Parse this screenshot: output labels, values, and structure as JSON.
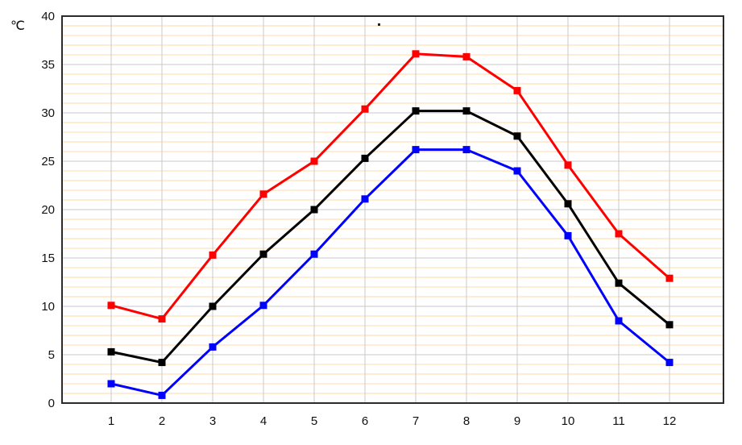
{
  "chart_data": {
    "type": "line",
    "title": "",
    "xlabel": "",
    "ylabel": "℃",
    "ylim": [
      0,
      40
    ],
    "xlim_categories": [
      "1",
      "12"
    ],
    "y_tick_step_major": 5,
    "y_tick_step_minor": 1,
    "y_tick_labels": [
      "40",
      "35",
      "30",
      "25",
      "20",
      "15",
      "10",
      "5",
      "0"
    ],
    "x_categories": [
      "1",
      "2",
      "3",
      "4",
      "5",
      "6",
      "7",
      "8",
      "9",
      "10",
      "11",
      "12"
    ],
    "grid": {
      "minor_horizontal_color": "#FFD8A6",
      "major_horizontal_color": "#C8C8C8",
      "vertical_color": "#C8C8C8",
      "border_color": "#2B2B2B"
    },
    "legend": "none",
    "marker": "square",
    "marker_size": 9,
    "line_width": 3,
    "series": [
      {
        "name": "red",
        "color": "#FF0000",
        "values": [
          10.1,
          8.7,
          15.3,
          21.6,
          25.0,
          30.4,
          36.1,
          35.8,
          32.3,
          24.6,
          17.5,
          12.9
        ]
      },
      {
        "name": "black",
        "color": "#000000",
        "values": [
          5.3,
          4.2,
          10.0,
          15.4,
          20.0,
          25.3,
          30.2,
          30.2,
          27.6,
          20.6,
          12.4,
          8.1
        ]
      },
      {
        "name": "blue",
        "color": "#0000FF",
        "values": [
          2.0,
          0.8,
          5.8,
          10.1,
          15.4,
          21.1,
          26.2,
          26.2,
          24.0,
          17.3,
          8.5,
          4.2
        ]
      }
    ],
    "stray_dot": true
  }
}
